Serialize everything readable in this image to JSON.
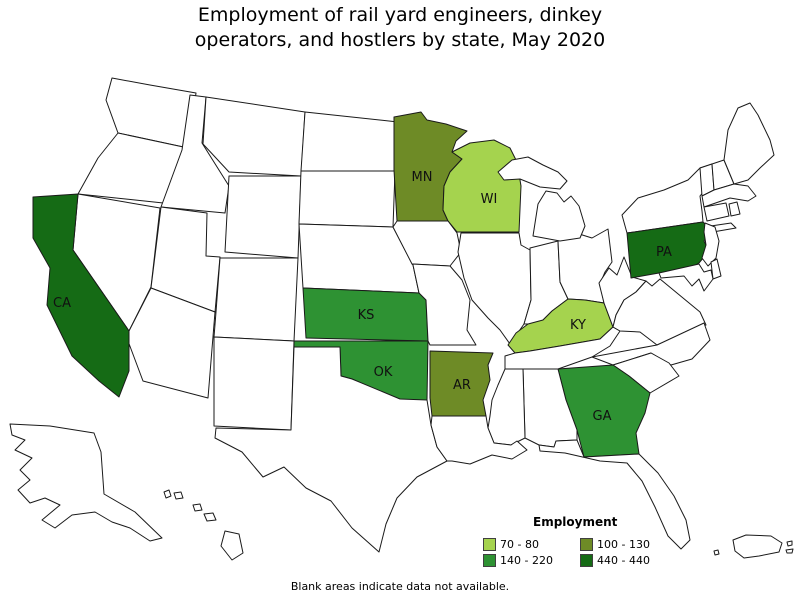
{
  "title": {
    "line1": "Employment of rail yard engineers, dinkey",
    "line2": "operators, and hostlers by state, May 2020"
  },
  "caption": "Blank areas indicate data not available.",
  "legend": {
    "title": "Employment",
    "items": [
      {
        "label": "70 - 80",
        "color": "#A5D34E"
      },
      {
        "label": "100 - 130",
        "color": "#6E8B26"
      },
      {
        "label": "140 - 220",
        "color": "#2E9233"
      },
      {
        "label": "440 - 440",
        "color": "#156B15"
      }
    ]
  },
  "map": {
    "default_fill": "#FFFFFF",
    "border_color": "#1A1A1A",
    "labeled_states": [
      {
        "abbr": "CA",
        "bucket": "440 - 440"
      },
      {
        "abbr": "PA",
        "bucket": "440 - 440"
      },
      {
        "abbr": "MN",
        "bucket": "100 - 130"
      },
      {
        "abbr": "AR",
        "bucket": "100 - 130"
      },
      {
        "abbr": "WI",
        "bucket": "70 - 80"
      },
      {
        "abbr": "KY",
        "bucket": "70 - 80"
      },
      {
        "abbr": "KS",
        "bucket": "140 - 220"
      },
      {
        "abbr": "OK",
        "bucket": "140 - 220"
      },
      {
        "abbr": "GA",
        "bucket": "140 - 220"
      }
    ]
  },
  "chart_data": {
    "type": "choropleth",
    "title": "Employment of rail yard engineers, dinkey operators, and hostlers by state, May 2020",
    "legend_title": "Employment",
    "bins": [
      {
        "range": "70 - 80",
        "color": "#A5D34E",
        "states": [
          "WI",
          "KY"
        ]
      },
      {
        "range": "100 - 130",
        "color": "#6E8B26",
        "states": [
          "MN",
          "AR"
        ]
      },
      {
        "range": "140 - 220",
        "color": "#2E9233",
        "states": [
          "KS",
          "OK",
          "GA"
        ]
      },
      {
        "range": "440 - 440",
        "color": "#156B15",
        "states": [
          "CA",
          "PA"
        ]
      }
    ],
    "note": "Blank areas indicate data not available.",
    "legend_position": "bottom-right"
  }
}
